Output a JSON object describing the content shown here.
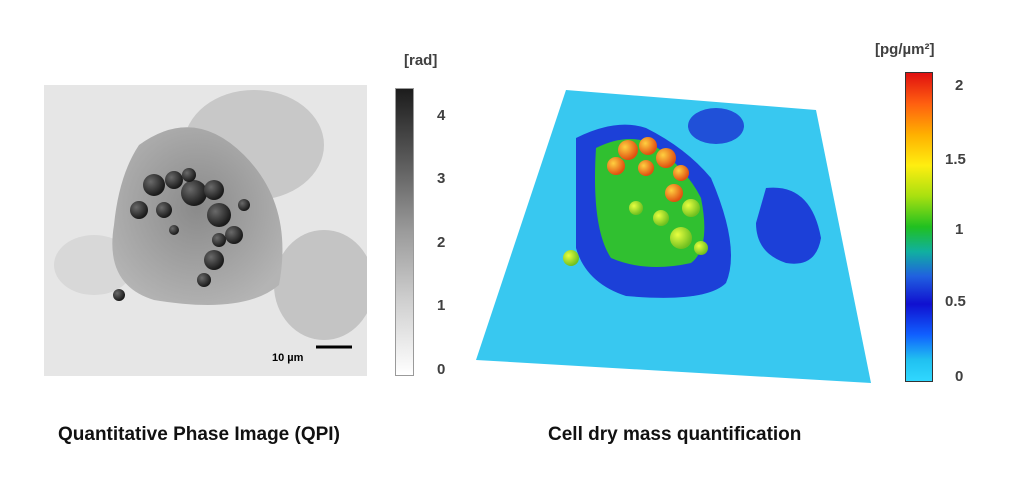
{
  "left_panel": {
    "caption": "Quantitative Phase Image (QPI)",
    "scalebar_label": "10 µm",
    "colorbar": {
      "unit": "[rad]",
      "ticks": [
        "4",
        "3",
        "2",
        "1",
        "0"
      ],
      "colormap": [
        "#1c1c1c",
        "#ffffff"
      ]
    }
  },
  "right_panel": {
    "caption": "Cell dry mass quantification",
    "colorbar": {
      "unit": "[pg/µm²]",
      "ticks": [
        "2",
        "1.5",
        "1",
        "0.5",
        "0"
      ],
      "colormap": [
        "#e01010",
        "#ffb000",
        "#ffee10",
        "#20c020",
        "#1010d0",
        "#30d8ff"
      ]
    }
  }
}
